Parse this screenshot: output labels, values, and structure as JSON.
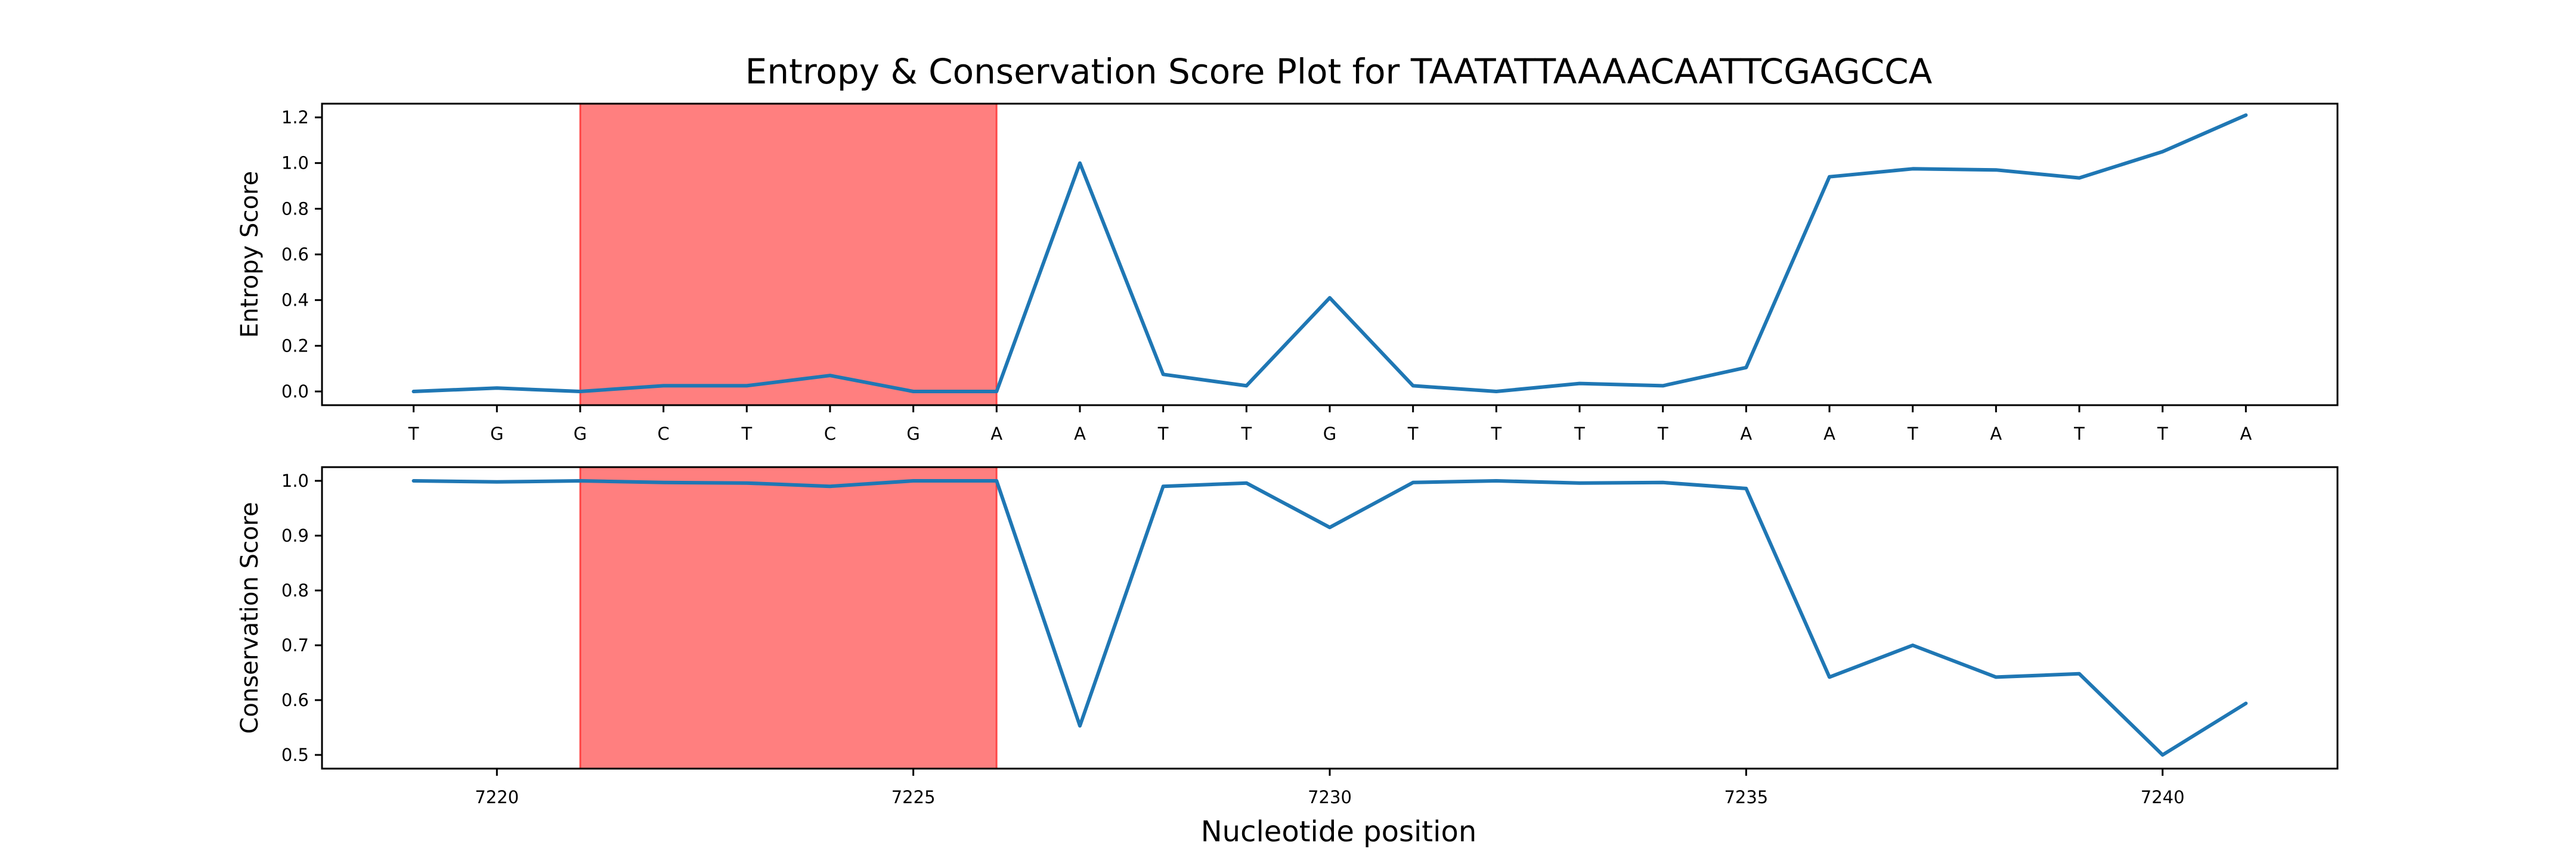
{
  "chart_data": {
    "type": "line",
    "title": "Entropy & Conservation Score Plot for TAATATTAAAACAATTCGAGCCA",
    "xlabel": "Nucleotide position",
    "x": [
      7219,
      7220,
      7221,
      7222,
      7223,
      7224,
      7225,
      7226,
      7227,
      7228,
      7229,
      7230,
      7231,
      7232,
      7233,
      7234,
      7235,
      7236,
      7237,
      7238,
      7239,
      7240,
      7241
    ],
    "xlim": [
      7217.9,
      7242.1
    ],
    "xticks": [
      7220,
      7225,
      7230,
      7235,
      7240
    ],
    "bases": [
      "T",
      "G",
      "G",
      "C",
      "T",
      "C",
      "G",
      "A",
      "A",
      "T",
      "T",
      "G",
      "T",
      "T",
      "T",
      "T",
      "A",
      "A",
      "T",
      "A",
      "T",
      "T",
      "A"
    ],
    "highlight": {
      "from": 7221,
      "to": 7226,
      "color": "#ff0000",
      "opacity": 0.5
    },
    "panels": [
      {
        "ylabel": "Entropy Score",
        "ylim": [
          -0.06,
          1.26
        ],
        "yticks": [
          "0.0",
          "0.2",
          "0.4",
          "0.6",
          "0.8",
          "1.0",
          "1.2"
        ],
        "series": [
          {
            "color": "#1f77b4",
            "values": [
              0.0,
              0.015,
              0.0,
              0.025,
              0.025,
              0.07,
              0.0,
              0.0,
              1.0,
              0.075,
              0.025,
              0.41,
              0.025,
              0.0,
              0.035,
              0.025,
              0.105,
              0.94,
              0.975,
              0.97,
              0.935,
              1.05,
              1.21
            ]
          }
        ]
      },
      {
        "ylabel": "Conservation Score",
        "ylim": [
          0.475,
          1.025
        ],
        "yticks": [
          "0.5",
          "0.6",
          "0.7",
          "0.8",
          "0.9",
          "1.0"
        ],
        "series": [
          {
            "color": "#1f77b4",
            "values": [
              1.0,
              0.998,
              1.0,
              0.997,
              0.996,
              0.99,
              1.0,
              1.0,
              0.553,
              0.99,
              0.996,
              0.915,
              0.997,
              1.0,
              0.996,
              0.997,
              0.986,
              0.642,
              0.7,
              0.642,
              0.648,
              0.5,
              0.594
            ]
          }
        ]
      }
    ]
  }
}
